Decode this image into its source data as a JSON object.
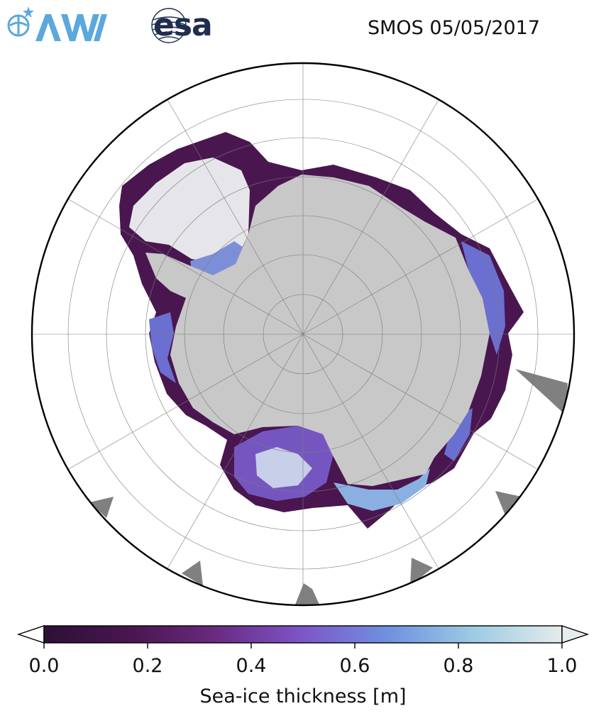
{
  "header": {
    "logo_left": "AWI",
    "logo_right": "esa",
    "title": "SMOS 05/05/2017"
  },
  "map": {
    "projection": "south-polar-stereographic",
    "land_color": "#c8c8c8",
    "nodata_color": "#808080",
    "ocean_color": "#ffffff",
    "gridlines": true
  },
  "colorbar": {
    "label": "Sea-ice thickness [m]",
    "ticks": [
      "0.0",
      "0.2",
      "0.4",
      "0.6",
      "0.8",
      "1.0"
    ],
    "range": [
      0.0,
      1.0
    ],
    "extend": "both",
    "colors": [
      "#2d1036",
      "#4a1650",
      "#6a2a80",
      "#7d56c8",
      "#6f93e0",
      "#9ecbe4",
      "#e4ecec"
    ]
  }
}
